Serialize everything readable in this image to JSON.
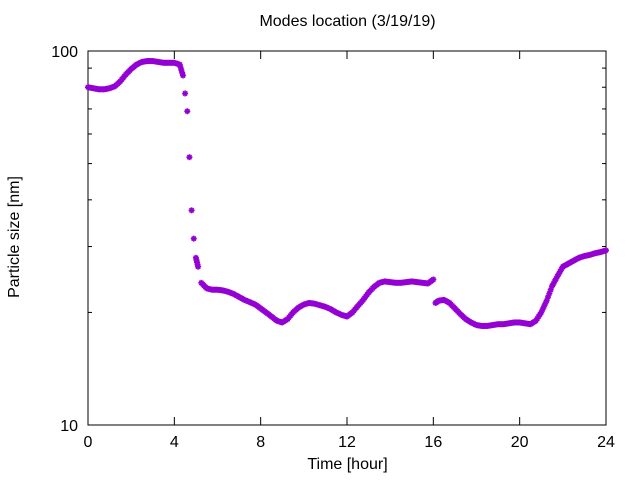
{
  "chart_data": {
    "type": "scatter",
    "title": "Modes location (3/19/19)",
    "xlabel": "Time [hour]",
    "ylabel": "Particle size [nm]",
    "xlim": [
      0,
      24
    ],
    "ylim": [
      10,
      100
    ],
    "y_scale": "log",
    "x_ticks": [
      "0",
      "4",
      "8",
      "12",
      "16",
      "20",
      "24"
    ],
    "y_ticks": [
      "10",
      "100"
    ],
    "grid": false,
    "marker_color": "#9400d3",
    "series": [
      {
        "x": [
          0.0,
          0.25,
          0.5,
          0.75,
          1.0,
          1.25,
          1.5,
          1.75,
          2.0,
          2.25,
          2.5,
          2.75,
          3.0,
          3.25,
          3.5,
          3.75,
          4.0,
          4.25,
          4.4,
          4.5,
          4.6,
          4.7,
          4.8,
          4.9,
          5.0,
          5.1,
          5.25,
          5.5,
          5.75,
          6.0,
          6.25,
          6.5,
          6.75,
          7.0,
          7.25,
          7.5,
          7.75,
          8.0,
          8.25,
          8.5,
          8.75,
          9.0,
          9.25,
          9.5,
          9.75,
          10.0,
          10.25,
          10.5,
          10.75,
          11.0,
          11.25,
          11.5,
          11.75,
          12.0,
          12.25,
          12.5,
          12.75,
          13.0,
          13.25,
          13.5,
          13.75,
          14.0,
          14.25,
          14.5,
          14.75,
          15.0,
          15.25,
          15.5,
          15.75,
          16.0,
          16.1,
          16.25,
          16.5,
          16.75,
          17.0,
          17.25,
          17.5,
          17.75,
          18.0,
          18.25,
          18.5,
          18.75,
          19.0,
          19.25,
          19.5,
          19.75,
          20.0,
          20.25,
          20.5,
          20.75,
          21.0,
          21.25,
          21.5,
          21.75,
          22.0,
          22.25,
          22.5,
          22.75,
          23.0,
          23.25,
          23.5,
          23.75,
          24.0
        ],
        "y": [
          80.0,
          79.5,
          79.0,
          79.0,
          79.5,
          80.5,
          83.0,
          86.5,
          89.5,
          92.0,
          93.5,
          94.0,
          94.0,
          93.5,
          93.0,
          93.0,
          93.0,
          92.0,
          86.0,
          77.0,
          69.0,
          52.0,
          37.5,
          31.5,
          28.0,
          26.5,
          24.0,
          23.2,
          23.0,
          23.0,
          22.9,
          22.7,
          22.4,
          22.0,
          21.6,
          21.3,
          21.0,
          20.5,
          20.0,
          19.5,
          19.0,
          18.8,
          19.2,
          20.0,
          20.6,
          21.0,
          21.2,
          21.1,
          20.9,
          20.7,
          20.4,
          20.0,
          19.7,
          19.5,
          20.0,
          20.8,
          21.6,
          22.6,
          23.4,
          24.0,
          24.2,
          24.1,
          24.0,
          24.0,
          24.1,
          24.2,
          24.1,
          24.0,
          23.9,
          24.5,
          21.2,
          21.5,
          21.6,
          21.2,
          20.5,
          19.8,
          19.2,
          18.8,
          18.5,
          18.4,
          18.4,
          18.5,
          18.6,
          18.6,
          18.7,
          18.8,
          18.8,
          18.7,
          18.6,
          19.0,
          20.0,
          21.5,
          23.5,
          25.0,
          26.5,
          27.0,
          27.5,
          28.0,
          28.3,
          28.5,
          28.8,
          29.0,
          29.3
        ]
      }
    ]
  }
}
